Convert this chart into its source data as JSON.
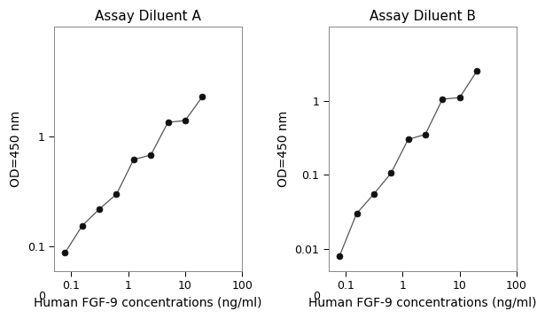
{
  "panel_A": {
    "title": "Assay Diluent A",
    "x": [
      0.078,
      0.156,
      0.313,
      0.625,
      1.25,
      2.5,
      5.0,
      10.0,
      20.0
    ],
    "y": [
      0.088,
      0.155,
      0.22,
      0.3,
      0.62,
      0.68,
      1.35,
      1.4,
      2.3
    ],
    "xlim": [
      0.05,
      100
    ],
    "ylim": [
      0.06,
      10
    ],
    "xticks": [
      0.1,
      1,
      10,
      100
    ],
    "yticks": [
      0.1,
      1
    ],
    "ytick_labels": [
      "0.1",
      "1"
    ],
    "xlabel": "Human FGF-9 concentrations (ng/ml)",
    "ylabel": "OD=450 nm"
  },
  "panel_B": {
    "title": "Assay Diluent B",
    "x": [
      0.078,
      0.156,
      0.313,
      0.625,
      1.25,
      2.5,
      5.0,
      10.0,
      20.0
    ],
    "y": [
      0.008,
      0.03,
      0.055,
      0.105,
      0.3,
      0.35,
      1.05,
      1.1,
      2.5
    ],
    "xlim": [
      0.05,
      100
    ],
    "ylim": [
      0.005,
      10
    ],
    "xticks": [
      0.1,
      1,
      10,
      100
    ],
    "yticks": [
      0.01,
      0.1,
      1
    ],
    "ytick_labels": [
      "0.01",
      "0.1",
      "1"
    ],
    "xlabel": "Human FGF-9 concentrations (ng/ml)",
    "ylabel": "OD=450 nm"
  },
  "line_color": "#555555",
  "marker_color": "#111111",
  "title_fontsize": 11,
  "label_fontsize": 10,
  "tick_fontsize": 9,
  "text_color": "#000000",
  "bg_color": "#ffffff"
}
